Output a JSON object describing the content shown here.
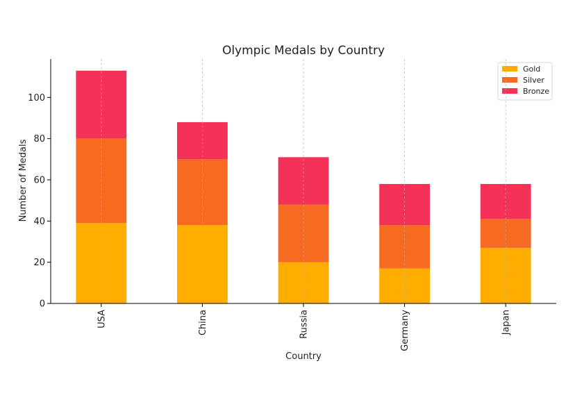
{
  "chart_data": {
    "type": "bar",
    "stacked": true,
    "title": "Olympic Medals by Country",
    "xlabel": "Country",
    "ylabel": "Number of Medals",
    "categories": [
      "USA",
      "China",
      "Russia",
      "Germany",
      "Japan"
    ],
    "series": [
      {
        "name": "Gold",
        "color": "#ffae00",
        "values": [
          39,
          38,
          20,
          17,
          27
        ]
      },
      {
        "name": "Silver",
        "color": "#f66a22",
        "values": [
          41,
          32,
          28,
          21,
          14
        ]
      },
      {
        "name": "Bronze",
        "color": "#f43157",
        "values": [
          33,
          18,
          23,
          20,
          17
        ]
      }
    ],
    "ylim": [
      0,
      118.65
    ],
    "yticks": [
      0,
      20,
      40,
      60,
      80,
      100
    ],
    "grid": {
      "x": true,
      "y": false,
      "style": "dashed"
    },
    "legend": {
      "position": "top-right"
    }
  }
}
